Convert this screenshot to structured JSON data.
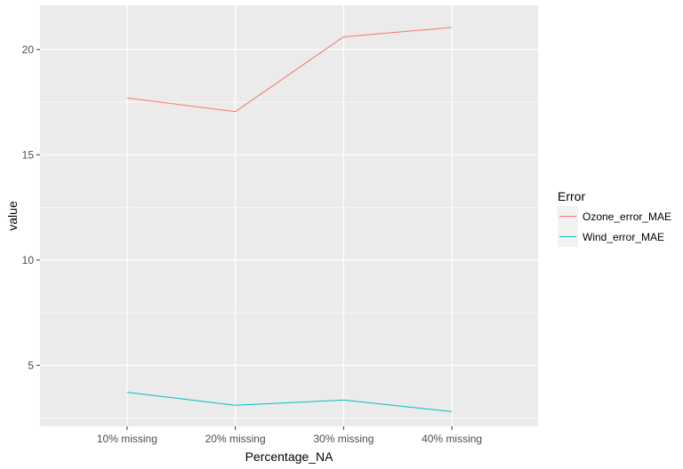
{
  "chart_data": {
    "type": "line",
    "categories": [
      "10% missing",
      "20% missing",
      "30% missing",
      "40% missing"
    ],
    "series": [
      {
        "name": "Ozone_error_MAE",
        "values": [
          17.7,
          17.05,
          20.6,
          21.05
        ],
        "color": "#F8766D"
      },
      {
        "name": "Wind_error_MAE",
        "values": [
          3.72,
          3.1,
          3.35,
          2.8
        ],
        "color": "#00BFC4"
      }
    ],
    "xlabel": "Percentage_NA",
    "ylabel": "value",
    "ylim": [
      2.1,
      22.1
    ],
    "yticks": [
      5,
      10,
      15,
      20
    ],
    "legend": {
      "title": "Error",
      "position": "right"
    },
    "grid": true,
    "panel_background": "#EBEBEB",
    "grid_color": "#FFFFFF"
  }
}
